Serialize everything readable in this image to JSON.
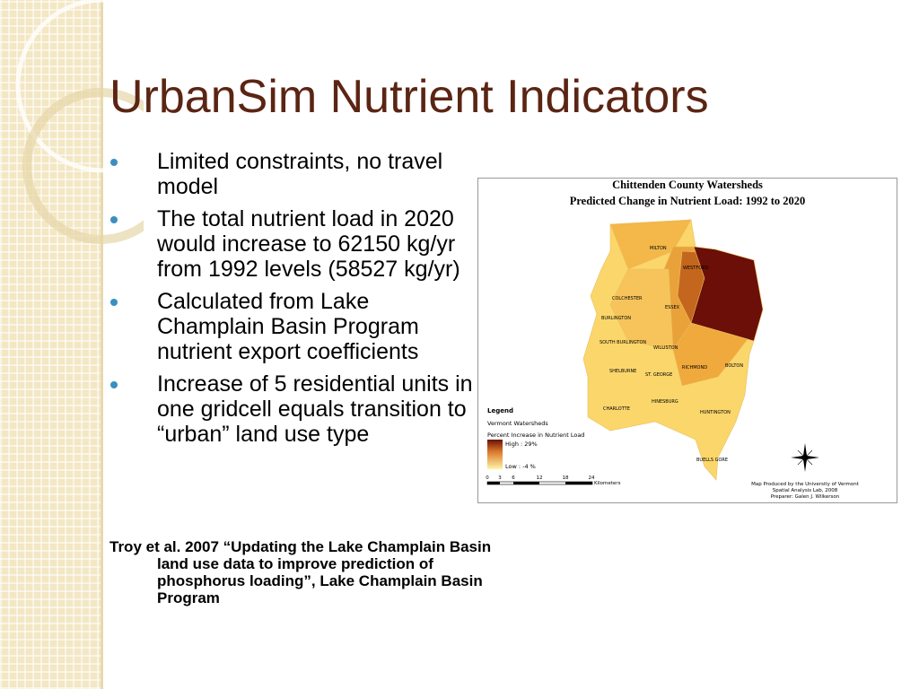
{
  "title": "UrbanSim Nutrient Indicators",
  "bullets": [
    "Limited constraints, no travel model",
    "The total nutrient load in 2020 would increase to 62150 kg/yr from 1992 levels (58527 kg/yr)",
    "Calculated from Lake Champlain Basin Program nutrient export coefficients",
    "Increase of 5 residential units in one gridcell equals transition to “urban” land use type"
  ],
  "citation": "Troy et al. 2007 “Updating the Lake Champlain Basin land use data to improve prediction of phosphorus loading”, Lake Champlain Basin Program",
  "map": {
    "title_lines": [
      "Chittenden County Watersheds",
      "Predicted Change in Nutrient Load: 1992 to 2020"
    ],
    "towns": [
      "MILTON",
      "WESTFORD",
      "COLCHESTER",
      "ESSEX",
      "BURLINGTON",
      "SOUTH BURLINGTON",
      "WILLISTON",
      "RICHMOND",
      "BOLTON",
      "SHELBURNE",
      "ST. GEORGE",
      "HINESBURG",
      "CHARLOTTE",
      "HUNTINGTON",
      "BUELLS GORE"
    ],
    "legend": {
      "title": "Legend",
      "layer": "Vermont Watersheds",
      "field": "Percent Increase in Nutrient Load",
      "high": "High : 29%",
      "low": "Low : -4 %"
    },
    "scale": {
      "ticks": [
        "0",
        "3",
        "6",
        "12",
        "18",
        "24"
      ],
      "unit": "Kilometers"
    },
    "credit": [
      "Map Produced by the University of Vermont",
      "Spatial Analysis Lab, 2008",
      "Preparer: Galen J. Wilkerson"
    ]
  }
}
